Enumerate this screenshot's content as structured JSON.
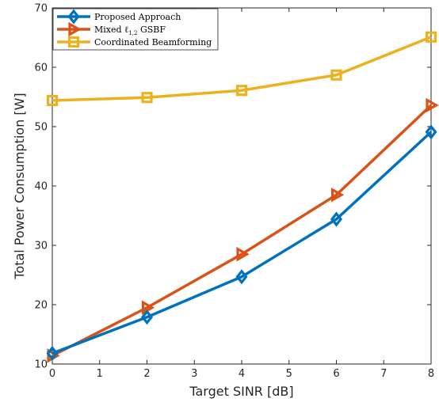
{
  "chart_data": {
    "type": "line",
    "xlabel": "Target SINR [dB]",
    "ylabel": "Total Power Consumption [W]",
    "xlim": [
      0,
      8
    ],
    "ylim": [
      10,
      70
    ],
    "xticks": [
      "0",
      "1",
      "2",
      "3",
      "4",
      "5",
      "6",
      "7",
      "8"
    ],
    "yticks": [
      "10",
      "20",
      "30",
      "40",
      "50",
      "60",
      "70"
    ],
    "grid": false,
    "legend_position": "top-left",
    "series": [
      {
        "name": "Proposed Approach",
        "color": "#0072BD",
        "marker": "diamond",
        "x": [
          0,
          2,
          4,
          6,
          8
        ],
        "y": [
          11.8,
          17.9,
          24.7,
          34.4,
          49.1
        ]
      },
      {
        "name": "Mixed ℓ1,2 GSBF",
        "name_base": "Mixed ℓ",
        "name_sub": "1,2",
        "name_rest": " GSBF",
        "color": "#D95319",
        "marker": "triangle-right",
        "x": [
          0,
          2,
          4,
          6,
          8
        ],
        "y": [
          11.4,
          19.5,
          28.5,
          38.5,
          53.6
        ]
      },
      {
        "name": "Coordinated Beamforming",
        "color": "#EDB120",
        "marker": "square",
        "x": [
          0,
          2,
          4,
          6,
          8
        ],
        "y": [
          54.4,
          54.9,
          56.1,
          58.7,
          65.1
        ]
      }
    ]
  }
}
